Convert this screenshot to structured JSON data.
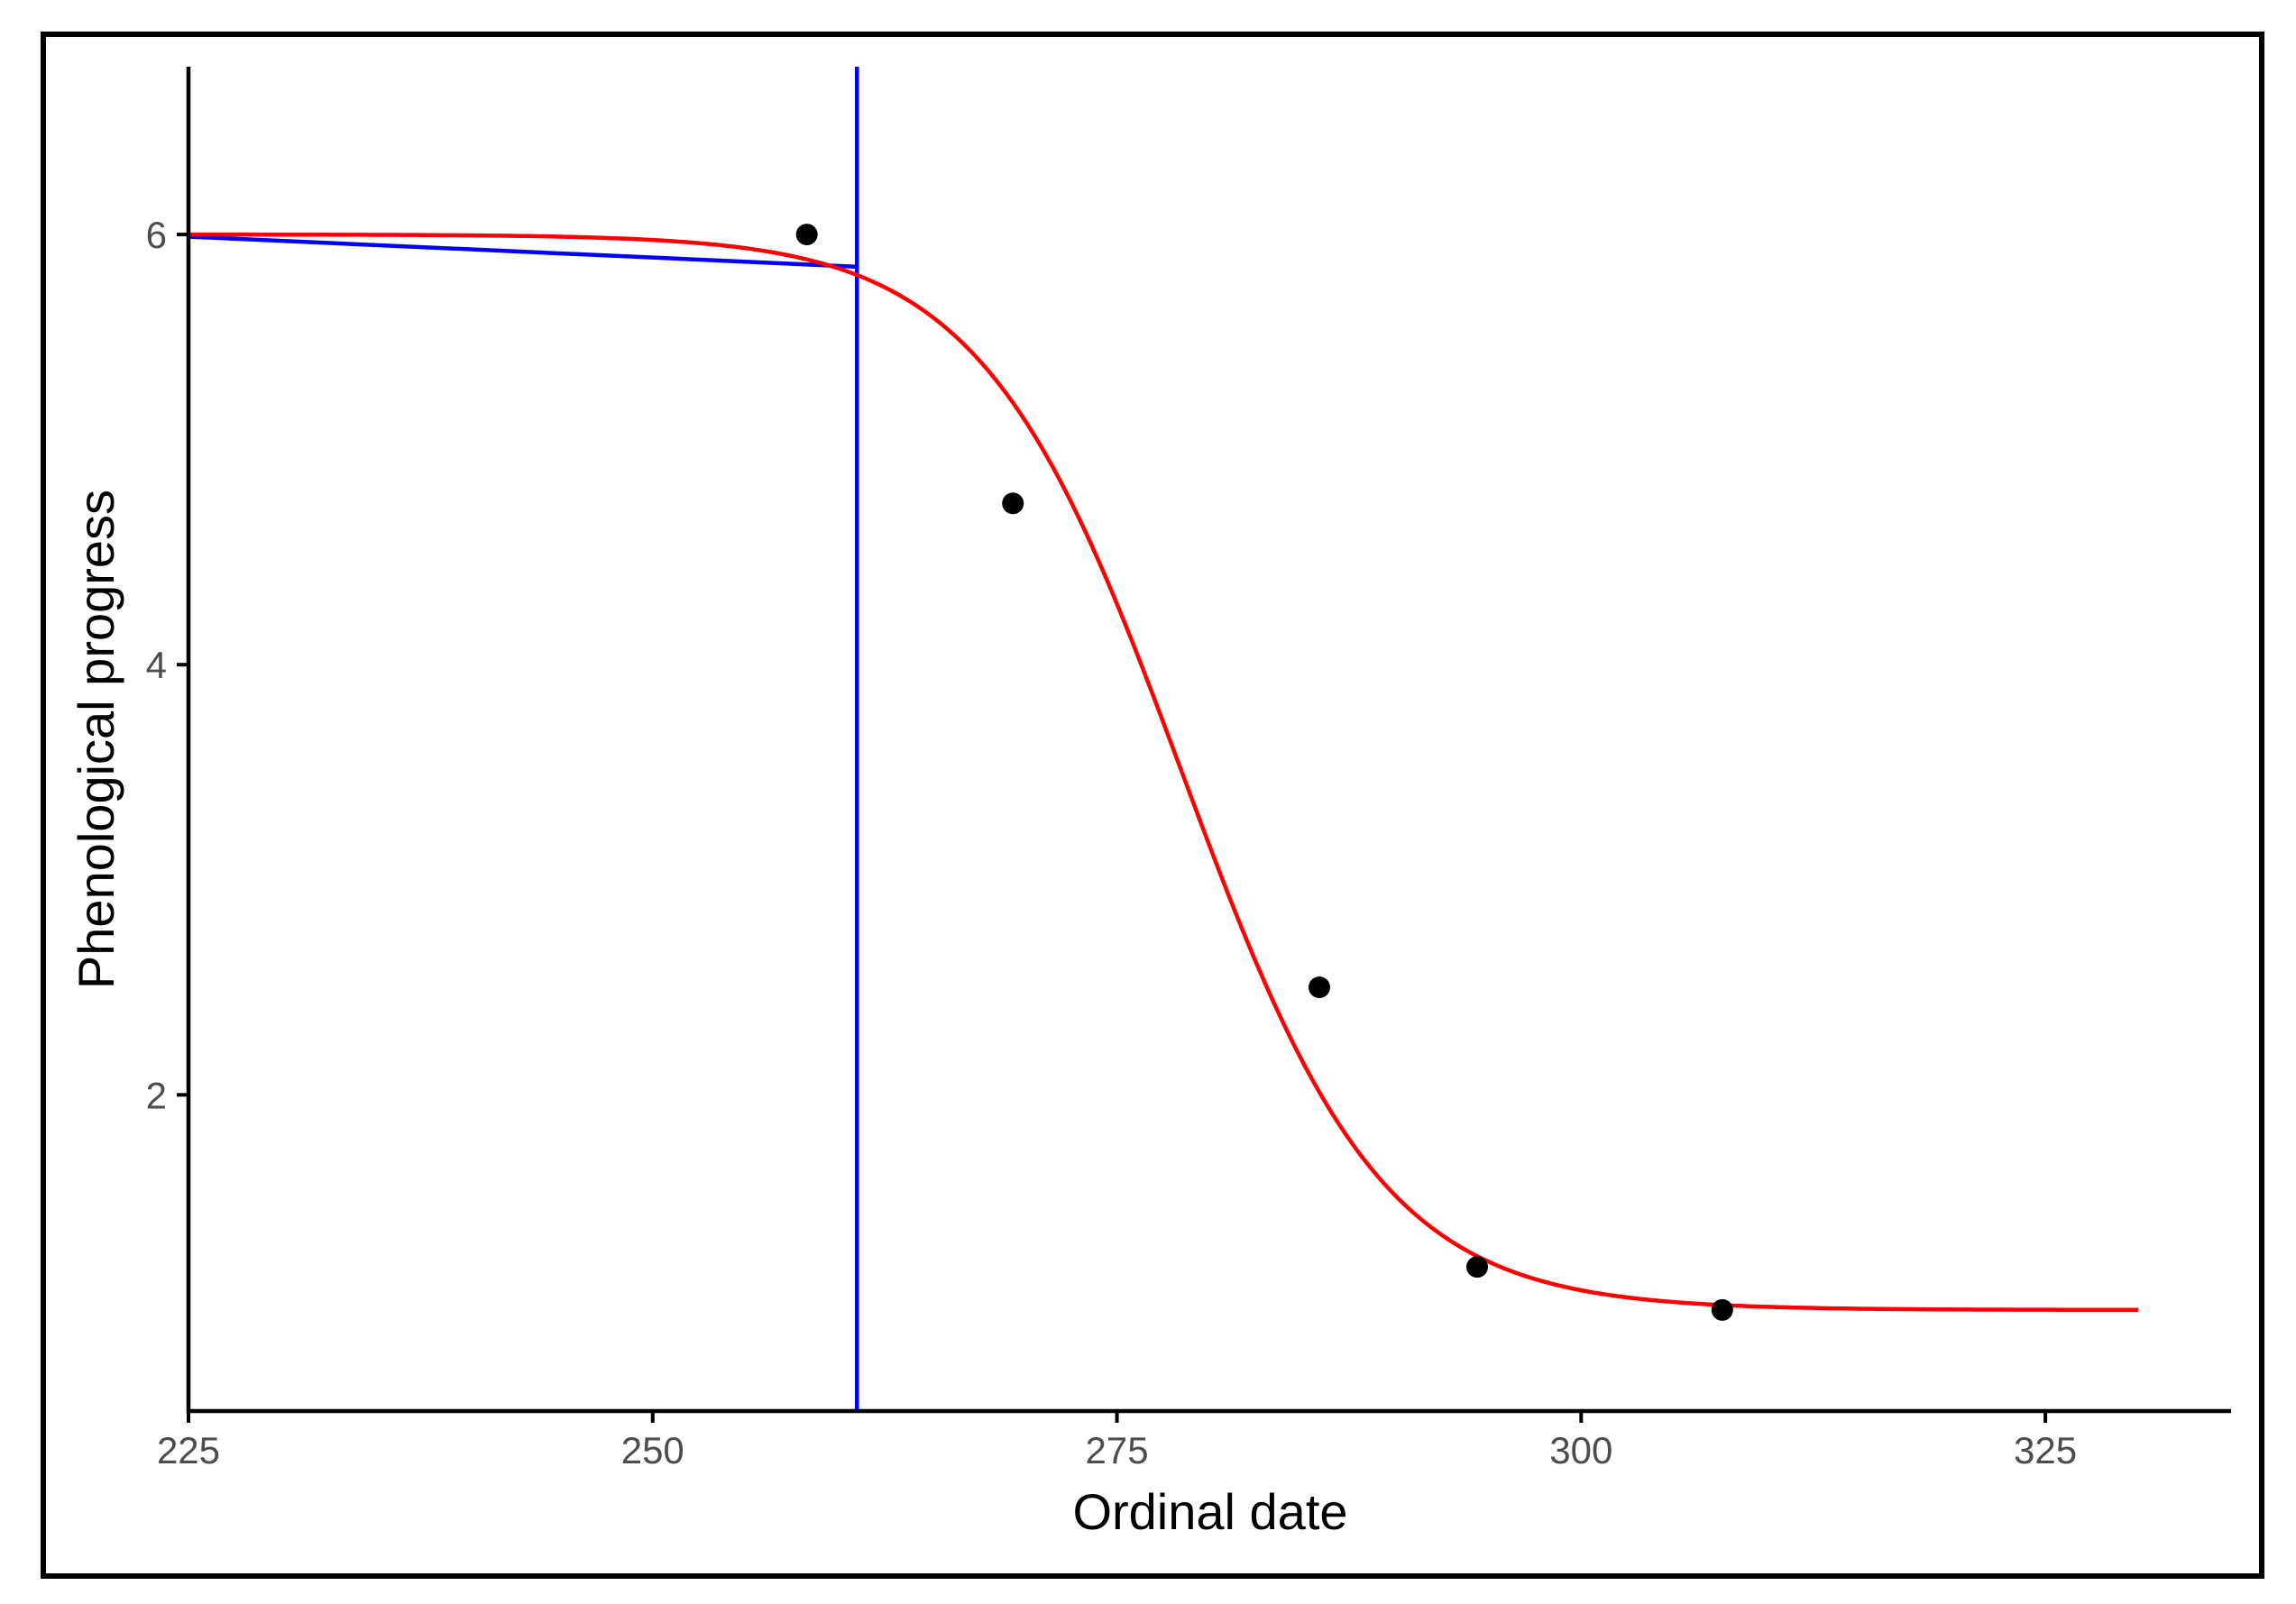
{
  "colors": {
    "points": "#000000",
    "fitted_curve": "#ff0000",
    "reference_lines": "#0000ff",
    "axis": "#000000",
    "tick_labels": "#4d4d4d",
    "frame": "#000000"
  },
  "chart_data": {
    "type": "scatter",
    "title": "",
    "xlabel": "Ordinal date",
    "ylabel": "Phenological progress",
    "xlim": [
      225,
      335
    ],
    "ylim": [
      0.53,
      6.78
    ],
    "x_ticks": [
      225,
      250,
      275,
      300,
      325
    ],
    "y_ticks": [
      2,
      4,
      6
    ],
    "x_tick_labels": [
      "225",
      "250",
      "275",
      "300",
      "325"
    ],
    "y_tick_labels": [
      "2",
      "4",
      "6"
    ],
    "grid": false,
    "legend": "none",
    "points": [
      {
        "x": 258.3,
        "y": 6.0
      },
      {
        "x": 269.4,
        "y": 4.75
      },
      {
        "x": 285.9,
        "y": 2.5
      },
      {
        "x": 294.4,
        "y": 1.2
      },
      {
        "x": 307.6,
        "y": 1.0
      }
    ],
    "fitted_curve": {
      "model": "logistic",
      "upper": 6.0,
      "lower": 1.0,
      "midpoint": 278.5,
      "scale": 5.4,
      "x_range": [
        225,
        330
      ]
    },
    "reference_lines": {
      "horizontal_segment": {
        "x": [
          225,
          261
        ],
        "y": [
          5.99,
          5.85
        ]
      },
      "vertical_line": {
        "x": 261
      }
    }
  }
}
